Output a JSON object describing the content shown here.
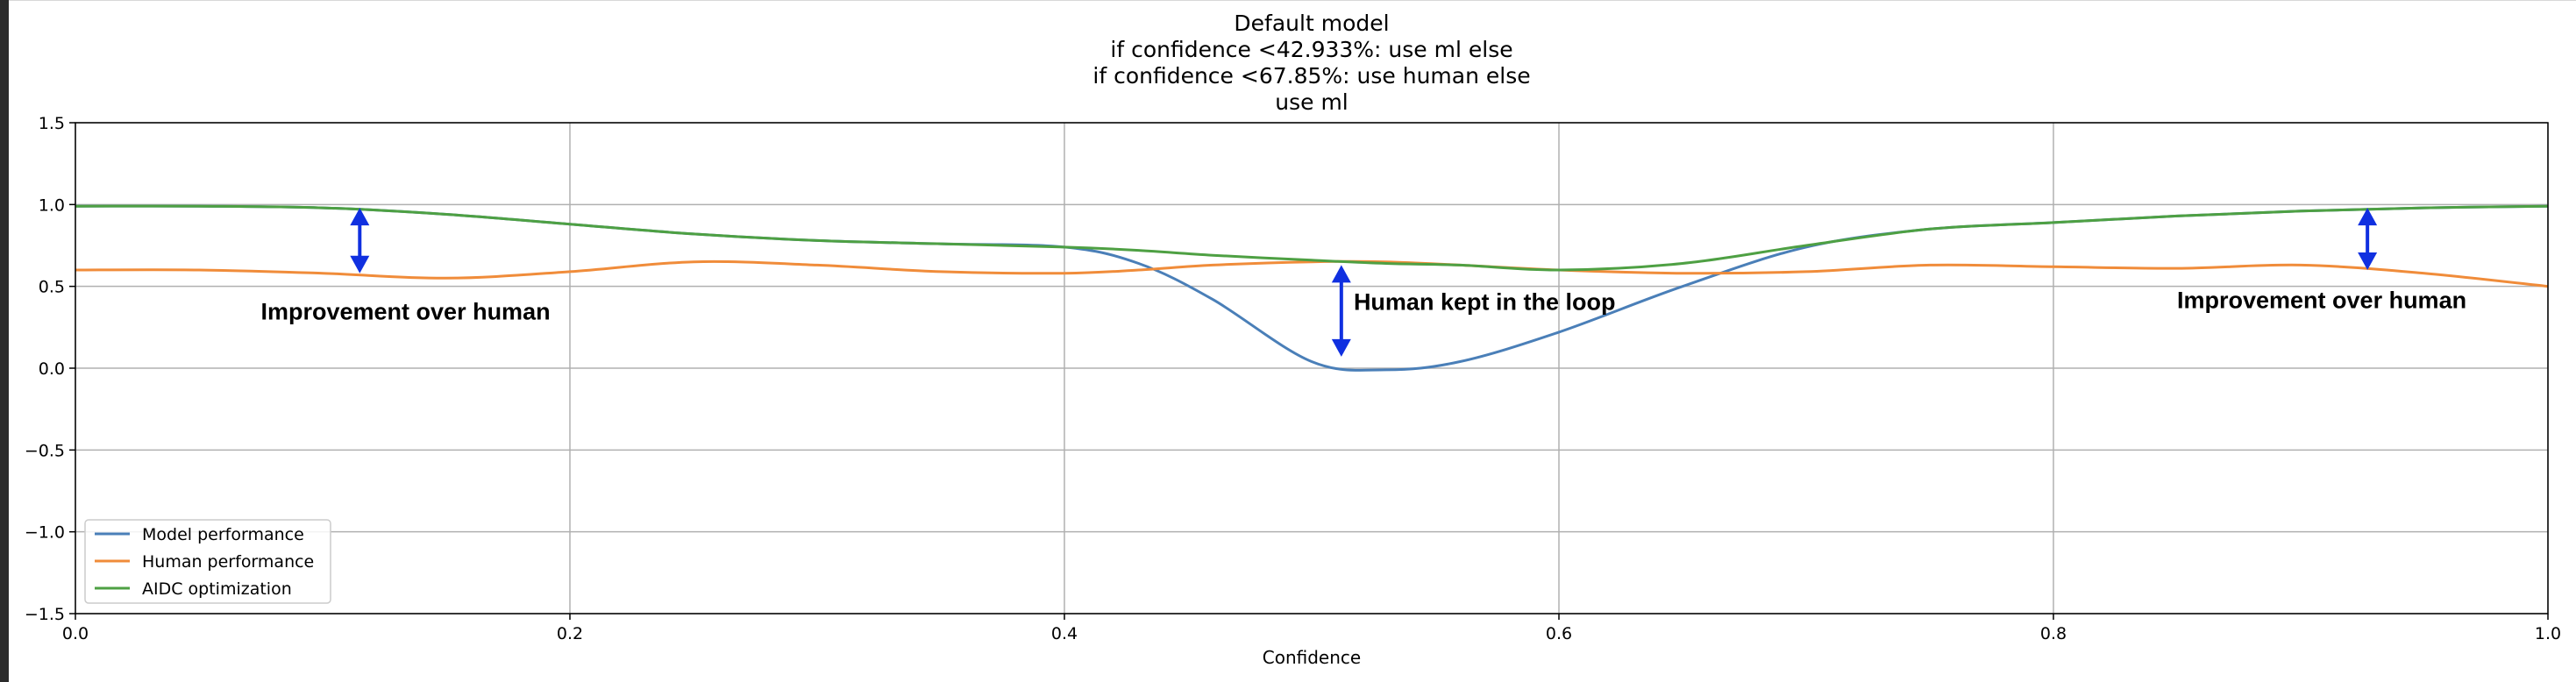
{
  "chart_data": {
    "type": "line",
    "title_lines": [
      "Default model",
      "if confidence <42.933%: use ml else",
      "if confidence <67.85%: use human else",
      "use ml"
    ],
    "xlabel": "Confidence",
    "ylabel": "",
    "xlim": [
      0.0,
      1.0
    ],
    "ylim": [
      -1.5,
      1.5
    ],
    "xticks": [
      "0.0",
      "0.2",
      "0.4",
      "0.6",
      "0.8",
      "1.0"
    ],
    "yticks": [
      "1.5",
      "1.0",
      "0.5",
      "0.0",
      "−0.5",
      "−1.0",
      "−1.5"
    ],
    "grid": true,
    "legend_position": "lower-left",
    "x": [
      0.0,
      0.05,
      0.1,
      0.15,
      0.2,
      0.25,
      0.3,
      0.35,
      0.4,
      0.43,
      0.46,
      0.5,
      0.53,
      0.56,
      0.6,
      0.65,
      0.7,
      0.75,
      0.8,
      0.85,
      0.9,
      0.95,
      1.0
    ],
    "series": [
      {
        "name": "Model performance",
        "color": "#4a7fb8",
        "values": [
          0.99,
          0.99,
          0.98,
          0.94,
          0.88,
          0.82,
          0.78,
          0.76,
          0.74,
          0.64,
          0.42,
          0.04,
          -0.01,
          0.04,
          0.22,
          0.5,
          0.74,
          0.85,
          0.89,
          0.93,
          0.96,
          0.98,
          0.99
        ]
      },
      {
        "name": "Human performance",
        "color": "#f08c3a",
        "values": [
          0.6,
          0.6,
          0.58,
          0.55,
          0.59,
          0.65,
          0.63,
          0.59,
          0.58,
          0.6,
          0.63,
          0.65,
          0.65,
          0.63,
          0.6,
          0.58,
          0.59,
          0.63,
          0.62,
          0.61,
          0.63,
          0.58,
          0.5
        ]
      },
      {
        "name": "AIDC optimization",
        "color": "#4ea043",
        "values": [
          0.99,
          0.99,
          0.98,
          0.94,
          0.88,
          0.82,
          0.78,
          0.76,
          0.74,
          0.72,
          0.69,
          0.66,
          0.64,
          0.63,
          0.6,
          0.64,
          0.75,
          0.85,
          0.89,
          0.93,
          0.96,
          0.98,
          0.99
        ]
      }
    ],
    "annotations": [
      {
        "text": "Improvement over human",
        "x": 0.075,
        "y": 0.35,
        "arrow_x": 0.115,
        "arrow_from": 0.58,
        "arrow_to": 0.98
      },
      {
        "text": "Human kept in the loop",
        "x": 0.517,
        "y": 0.41,
        "arrow_x": 0.512,
        "arrow_from": 0.07,
        "arrow_to": 0.63
      },
      {
        "text": "Improvement over human",
        "x": 0.85,
        "y": 0.42,
        "arrow_x": 0.927,
        "arrow_from": 0.6,
        "arrow_to": 0.98
      }
    ],
    "arrow_color": "#1030e0"
  }
}
